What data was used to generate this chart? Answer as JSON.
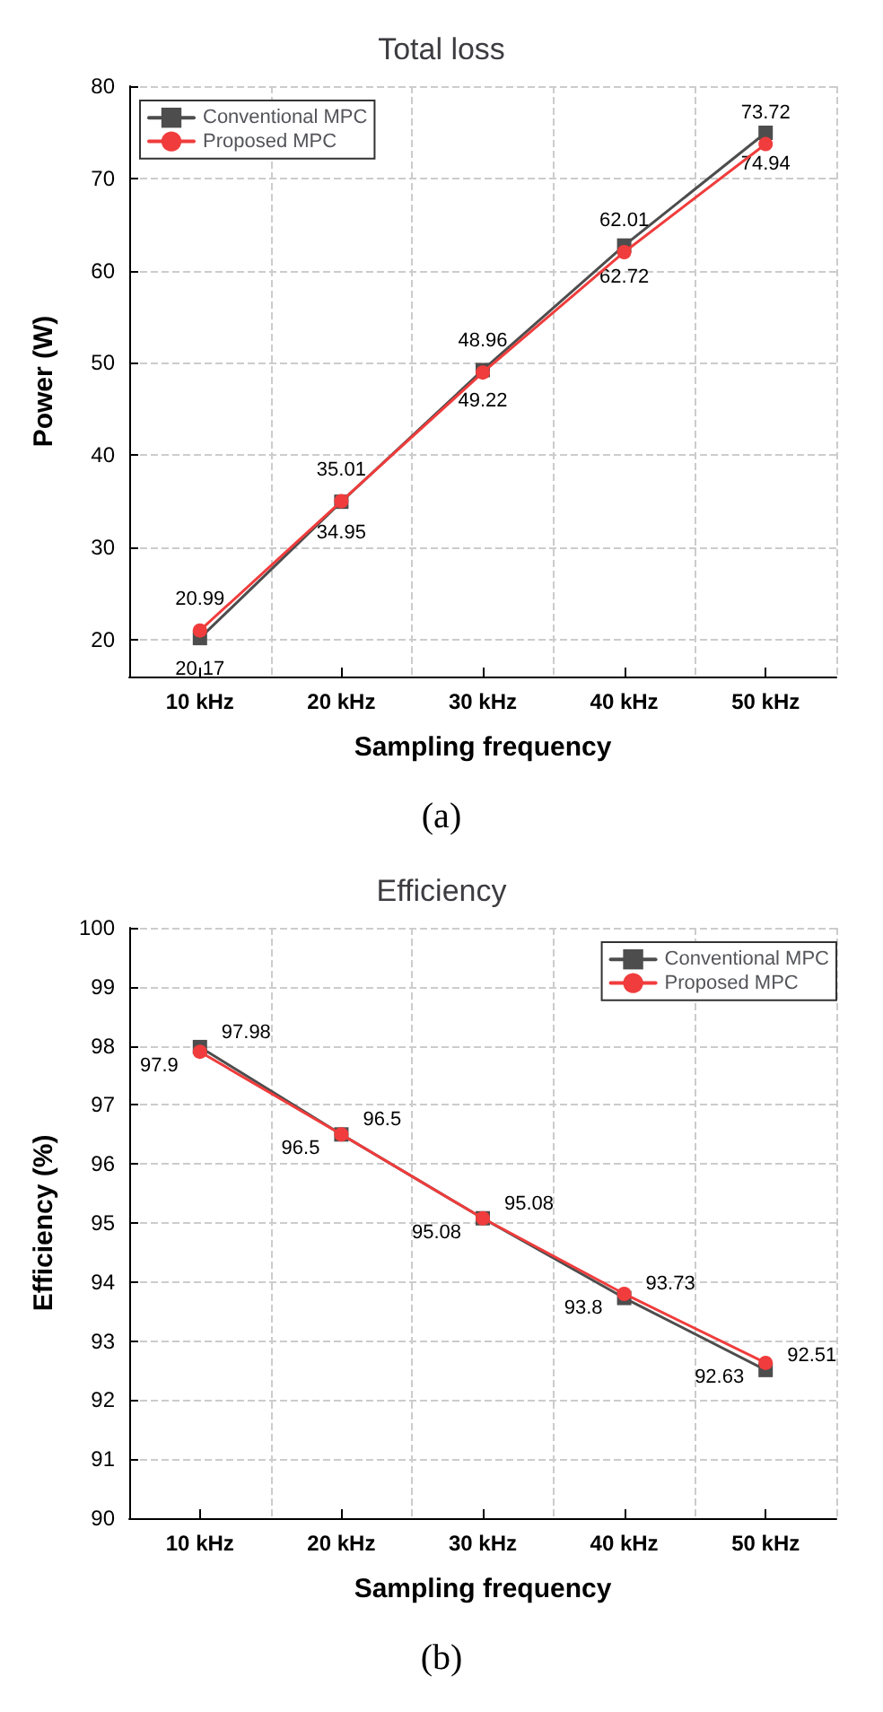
{
  "chart_data": [
    {
      "type": "line",
      "title": "Total loss",
      "xlabel": "Sampling frequency",
      "ylabel": "Power (W)",
      "categories": [
        "10 kHz",
        "20 kHz",
        "30 kHz",
        "40 kHz",
        "50 kHz"
      ],
      "series": [
        {
          "name": "Conventional MPC",
          "color": "#4d4d4d",
          "marker": "square",
          "values": [
            20.17,
            34.95,
            49.22,
            62.72,
            74.94
          ]
        },
        {
          "name": "Proposed MPC",
          "color": "#f03c3c",
          "marker": "circle",
          "values": [
            20.99,
            35.01,
            48.96,
            62.01,
            73.72
          ]
        }
      ],
      "ylim": [
        16,
        80
      ],
      "yticks": [
        20,
        30,
        40,
        50,
        60,
        70,
        80
      ],
      "grid": true,
      "legend": "top left",
      "data_labels": true,
      "line_style": "solid",
      "annotations": [
        "(a)"
      ]
    },
    {
      "type": "line",
      "title": "Efficiency",
      "xlabel": "Sampling frequency",
      "ylabel": "Efficiency (%)",
      "categories": [
        "10 kHz",
        "20 kHz",
        "30 kHz",
        "40 kHz",
        "50 kHz"
      ],
      "series": [
        {
          "name": "Conventional MPC",
          "color": "#4d4d4d",
          "marker": "square",
          "values": [
            97.98,
            96.5,
            95.08,
            93.73,
            92.51
          ]
        },
        {
          "name": "Proposed MPC",
          "color": "#f03c3c",
          "marker": "circle",
          "values": [
            97.9,
            96.5,
            95.08,
            93.8,
            92.63
          ]
        }
      ],
      "ylim": [
        90,
        100
      ],
      "yticks": [
        90,
        91,
        92,
        93,
        94,
        95,
        96,
        97,
        98,
        99,
        100
      ],
      "grid": true,
      "legend": "top right",
      "data_labels": true,
      "line_style": "solid",
      "annotations": [
        "(b)"
      ]
    }
  ]
}
